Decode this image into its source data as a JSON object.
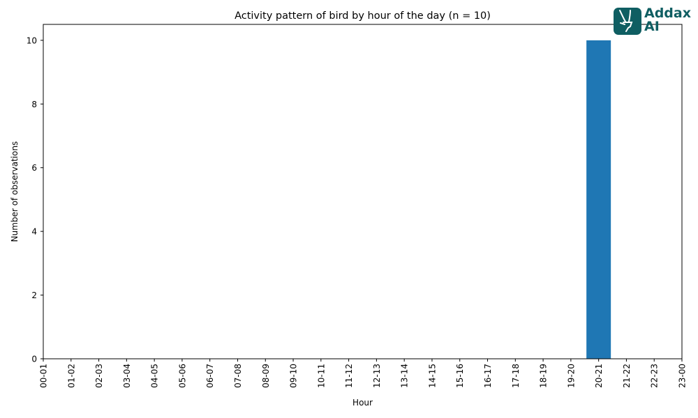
{
  "chart_data": {
    "type": "bar",
    "title": "Activity pattern of bird by hour of the day (n = 10)",
    "xlabel": "Hour",
    "ylabel": "Number of observations",
    "categories": [
      "00-01",
      "01-02",
      "02-03",
      "03-04",
      "04-05",
      "05-06",
      "06-07",
      "07-08",
      "08-09",
      "09-10",
      "10-11",
      "11-12",
      "12-13",
      "13-14",
      "14-15",
      "15-16",
      "16-17",
      "17-18",
      "18-19",
      "19-20",
      "20-21",
      "21-22",
      "22-23",
      "23-00"
    ],
    "values": [
      0,
      0,
      0,
      0,
      0,
      0,
      0,
      0,
      0,
      0,
      0,
      0,
      0,
      0,
      0,
      0,
      0,
      0,
      0,
      0,
      10,
      0,
      0,
      0
    ],
    "ylim": [
      0,
      10.5
    ],
    "yticks": [
      0,
      2,
      4,
      6,
      8,
      10
    ],
    "grid": false,
    "bar_color": "#1f77b4"
  },
  "logo": {
    "line1": "Addax",
    "line2": "AI",
    "color": "#0f5e62",
    "icon": "addax-antelope-icon"
  }
}
